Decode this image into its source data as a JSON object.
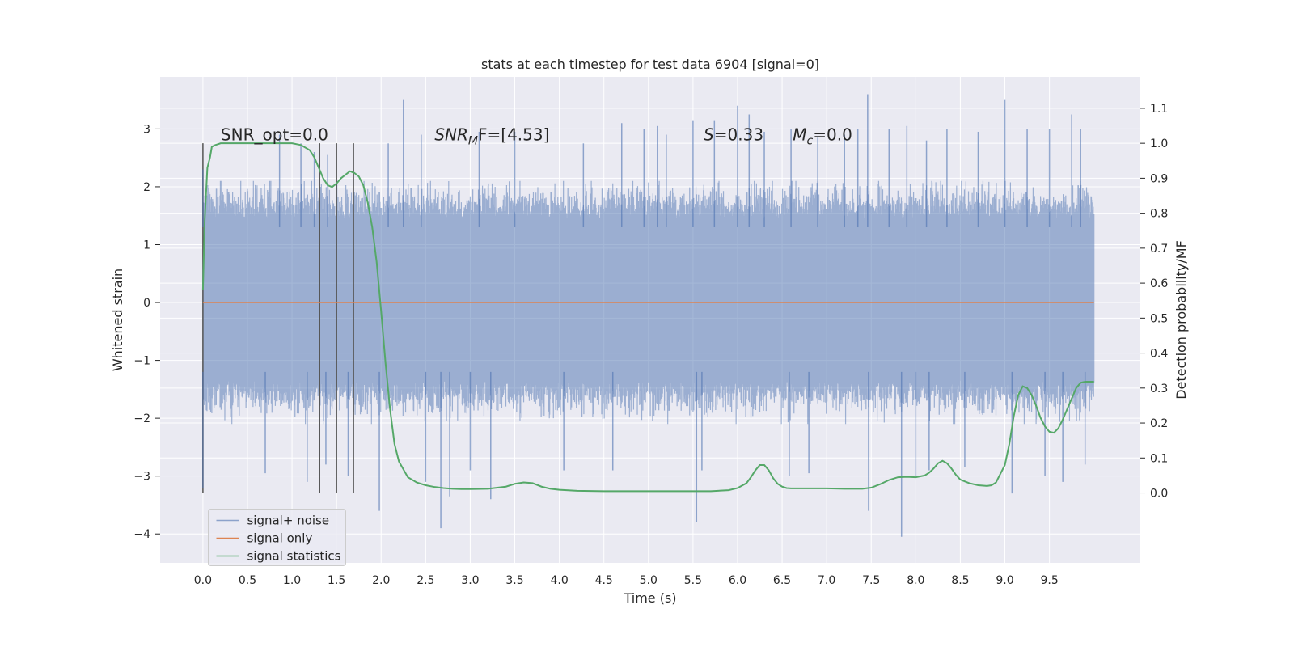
{
  "chart_data": {
    "type": "line",
    "title": "stats at each timestep for test data 6904 [signal=0]",
    "xlabel": "Time (s)",
    "ylabel_left": "Whitened strain",
    "ylabel_right": "Detection probability/MF",
    "xlim": [
      -0.48,
      10.52
    ],
    "ylim_left": [
      -4.5,
      3.9
    ],
    "ylim_right": [
      -0.2,
      1.19
    ],
    "x_ticks": [
      "0.0",
      "0.5",
      "1.0",
      "1.5",
      "2.0",
      "2.5",
      "3.0",
      "3.5",
      "4.0",
      "4.5",
      "5.0",
      "5.5",
      "6.0",
      "6.5",
      "7.0",
      "7.5",
      "8.0",
      "8.5",
      "9.0",
      "9.5"
    ],
    "y_ticks_left": [
      "3",
      "2",
      "1",
      "0",
      "−1",
      "−2",
      "−3",
      "−4"
    ],
    "y_ticks_right": [
      "1.1",
      "1.0",
      "0.9",
      "0.8",
      "0.7",
      "0.6",
      "0.5",
      "0.4",
      "0.3",
      "0.2",
      "0.1",
      "0.0"
    ],
    "annotations": {
      "snr_opt": "SNR_opt=0.0",
      "snr_mf_italic": "SNR",
      "snr_mf_sub": "M",
      "snr_mf_rest": "F=[4.53]",
      "s_italic": "S",
      "s_rest": "=0.33",
      "mc_italic": "M",
      "mc_sub": "c",
      "mc_rest": "=0.0"
    },
    "vertical_markers_s": [
      0.0,
      1.31,
      1.5,
      1.69
    ],
    "grid": true,
    "legend": {
      "placement": "lower-left",
      "entries": [
        "signal+ noise",
        "signal only",
        "signal statistics"
      ]
    },
    "series": [
      {
        "name": "signal+ noise",
        "axis": "left",
        "color": "#4c72b0",
        "t_range": [
          0.0,
          10.0
        ],
        "typical_range": [
          -1.5,
          1.6
        ],
        "extremes": {
          "max": 3.6,
          "min": -4.1
        },
        "spikes_up": [
          [
            0.0,
            2.3
          ],
          [
            0.86,
            2.9
          ],
          [
            1.1,
            2.75
          ],
          [
            1.25,
            2.6
          ],
          [
            1.4,
            2.55
          ],
          [
            2.08,
            2.75
          ],
          [
            2.25,
            3.5
          ],
          [
            2.45,
            2.9
          ],
          [
            3.1,
            2.95
          ],
          [
            3.5,
            2.95
          ],
          [
            4.27,
            2.75
          ],
          [
            4.7,
            3.1
          ],
          [
            4.95,
            3.0
          ],
          [
            5.1,
            3.05
          ],
          [
            5.2,
            2.9
          ],
          [
            5.5,
            3.15
          ],
          [
            5.74,
            3.15
          ],
          [
            6.0,
            3.4
          ],
          [
            6.13,
            3.25
          ],
          [
            6.3,
            2.95
          ],
          [
            6.6,
            3.0
          ],
          [
            6.9,
            2.85
          ],
          [
            7.2,
            2.9
          ],
          [
            7.35,
            3.0
          ],
          [
            7.46,
            3.6
          ],
          [
            7.7,
            3.0
          ],
          [
            7.9,
            3.05
          ],
          [
            8.12,
            2.8
          ],
          [
            8.35,
            3.0
          ],
          [
            8.7,
            2.95
          ],
          [
            9.0,
            3.5
          ],
          [
            9.25,
            3.0
          ],
          [
            9.5,
            3.0
          ],
          [
            9.75,
            3.25
          ],
          [
            9.85,
            3.0
          ]
        ],
        "spikes_down": [
          [
            0.0,
            -3.2
          ],
          [
            0.7,
            -2.95
          ],
          [
            1.17,
            -3.1
          ],
          [
            1.38,
            -2.8
          ],
          [
            1.63,
            -3.0
          ],
          [
            1.98,
            -3.6
          ],
          [
            2.5,
            -3.1
          ],
          [
            2.67,
            -3.9
          ],
          [
            2.77,
            -3.35
          ],
          [
            3.0,
            -2.9
          ],
          [
            3.23,
            -3.4
          ],
          [
            4.05,
            -2.9
          ],
          [
            4.6,
            -2.9
          ],
          [
            5.54,
            -3.8
          ],
          [
            5.6,
            -2.9
          ],
          [
            6.58,
            -3.0
          ],
          [
            6.8,
            -2.95
          ],
          [
            7.47,
            -3.6
          ],
          [
            7.84,
            -4.05
          ],
          [
            8.0,
            -3.0
          ],
          [
            8.15,
            -2.9
          ],
          [
            8.55,
            -2.85
          ],
          [
            9.08,
            -3.3
          ],
          [
            9.45,
            -3.0
          ],
          [
            9.65,
            -3.1
          ],
          [
            9.9,
            -2.8
          ]
        ]
      },
      {
        "name": "signal only",
        "axis": "left",
        "color": "#dd8452",
        "x": [
          0.0,
          10.0
        ],
        "y": [
          0.0,
          0.0
        ]
      },
      {
        "name": "signal statistics",
        "axis": "right",
        "color": "#55a868",
        "x": [
          0.0,
          0.02,
          0.05,
          0.08,
          0.1,
          0.14,
          0.2,
          0.3,
          0.4,
          0.5,
          0.6,
          0.7,
          0.8,
          0.9,
          1.0,
          1.1,
          1.2,
          1.25,
          1.3,
          1.35,
          1.4,
          1.45,
          1.5,
          1.55,
          1.6,
          1.65,
          1.7,
          1.75,
          1.8,
          1.85,
          1.9,
          1.95,
          2.0,
          2.05,
          2.1,
          2.15,
          2.2,
          2.3,
          2.4,
          2.5,
          2.6,
          2.7,
          2.8,
          2.9,
          3.0,
          3.2,
          3.4,
          3.5,
          3.6,
          3.7,
          3.8,
          3.9,
          4.0,
          4.2,
          4.5,
          5.0,
          5.5,
          5.7,
          5.9,
          6.0,
          6.1,
          6.15,
          6.2,
          6.25,
          6.3,
          6.35,
          6.4,
          6.45,
          6.5,
          6.55,
          6.6,
          6.7,
          6.8,
          7.0,
          7.2,
          7.4,
          7.5,
          7.6,
          7.7,
          7.8,
          7.9,
          8.0,
          8.1,
          8.15,
          8.2,
          8.25,
          8.3,
          8.35,
          8.4,
          8.45,
          8.5,
          8.6,
          8.7,
          8.8,
          8.85,
          8.9,
          9.0,
          9.05,
          9.1,
          9.15,
          9.2,
          9.25,
          9.3,
          9.35,
          9.4,
          9.45,
          9.5,
          9.55,
          9.6,
          9.65,
          9.7,
          9.75,
          9.8,
          9.85,
          9.9,
          9.95,
          10.0
        ],
        "y": [
          0.58,
          0.78,
          0.93,
          0.96,
          0.99,
          0.995,
          1.0,
          1.0,
          1.0,
          1.0,
          1.0,
          1.0,
          1.0,
          1.0,
          1.0,
          0.995,
          0.98,
          0.96,
          0.93,
          0.9,
          0.88,
          0.875,
          0.885,
          0.9,
          0.91,
          0.92,
          0.915,
          0.905,
          0.88,
          0.83,
          0.76,
          0.66,
          0.52,
          0.37,
          0.24,
          0.14,
          0.09,
          0.045,
          0.03,
          0.022,
          0.017,
          0.014,
          0.012,
          0.011,
          0.011,
          0.012,
          0.018,
          0.026,
          0.03,
          0.028,
          0.018,
          0.012,
          0.009,
          0.006,
          0.005,
          0.005,
          0.005,
          0.005,
          0.008,
          0.014,
          0.028,
          0.045,
          0.065,
          0.08,
          0.08,
          0.065,
          0.042,
          0.026,
          0.018,
          0.014,
          0.013,
          0.013,
          0.013,
          0.013,
          0.012,
          0.012,
          0.015,
          0.025,
          0.037,
          0.045,
          0.046,
          0.045,
          0.05,
          0.058,
          0.07,
          0.085,
          0.092,
          0.085,
          0.07,
          0.052,
          0.038,
          0.028,
          0.022,
          0.02,
          0.022,
          0.03,
          0.08,
          0.14,
          0.22,
          0.28,
          0.305,
          0.3,
          0.28,
          0.25,
          0.215,
          0.19,
          0.175,
          0.172,
          0.185,
          0.21,
          0.24,
          0.27,
          0.3,
          0.315,
          0.318,
          0.318,
          0.318
        ]
      }
    ]
  }
}
